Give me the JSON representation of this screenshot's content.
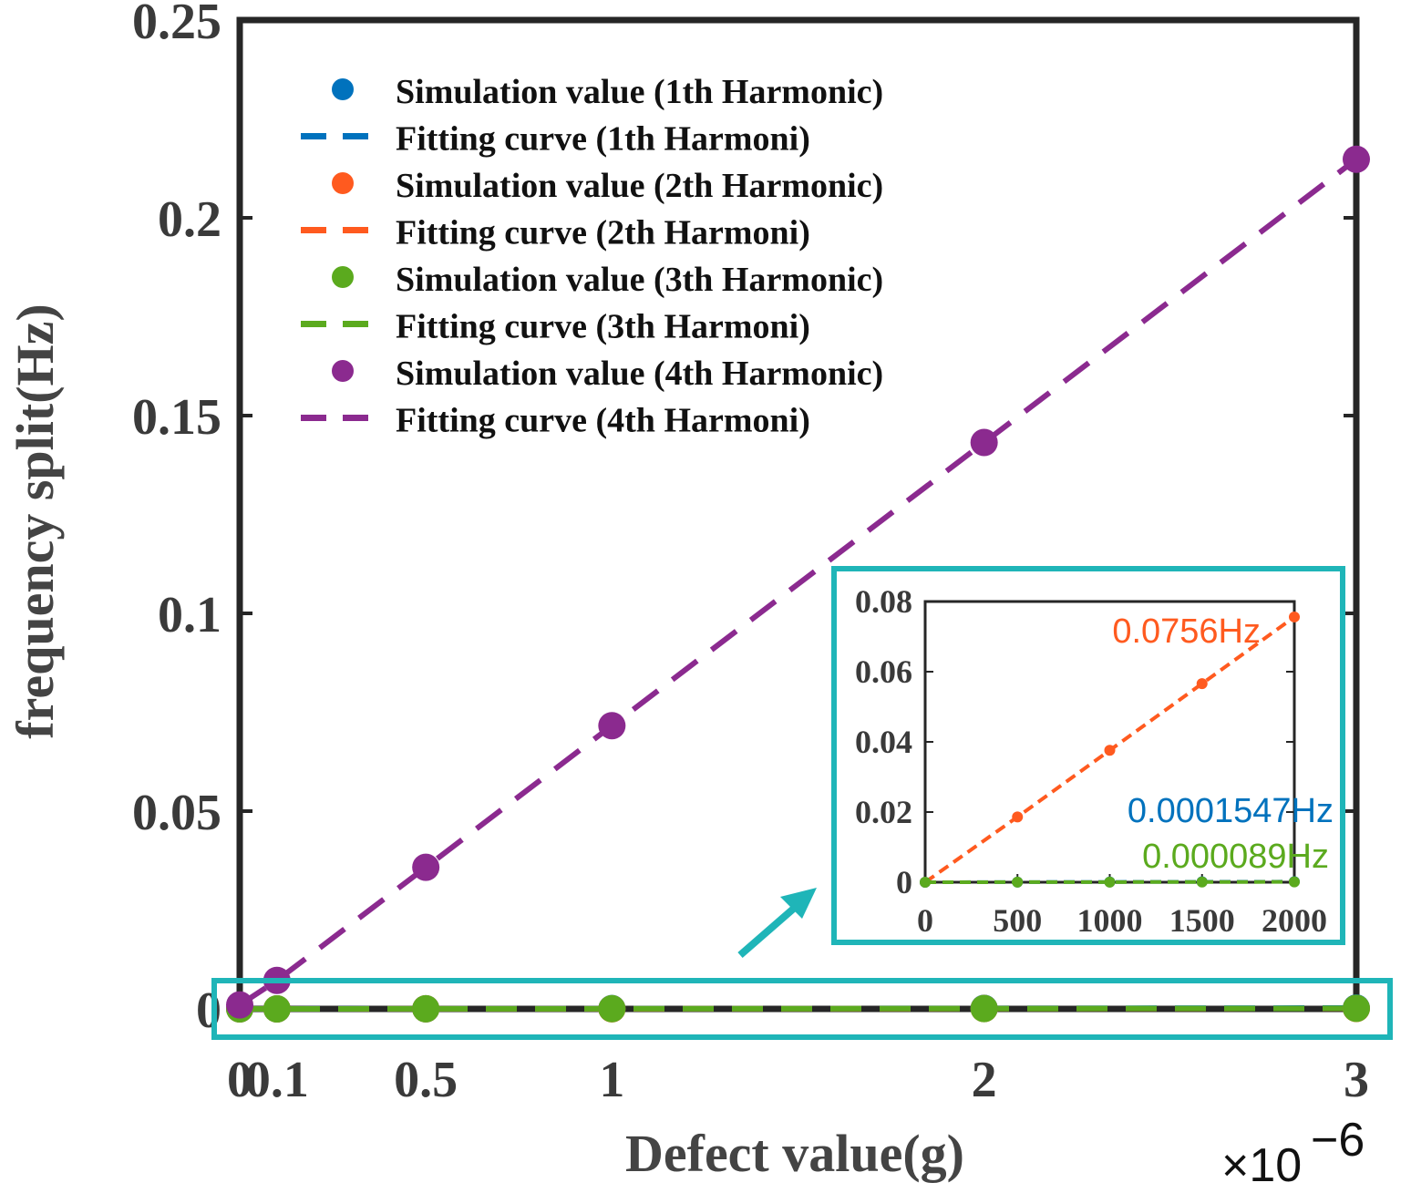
{
  "chart_data": {
    "type": "line",
    "xlabel": "Defect value(g)",
    "ylabel": "frequency split(Hz)",
    "x_multiplier_label": "×10",
    "x_multiplier_exponent": "−6",
    "xlim": [
      0,
      3
    ],
    "ylim": [
      0,
      0.25
    ],
    "x_ticks": [
      0,
      0.1,
      0.5,
      1,
      2,
      3
    ],
    "x_tick_labels": [
      "0",
      "0.1",
      "0.5",
      "1",
      "2",
      "3"
    ],
    "y_ticks": [
      0,
      0.05,
      0.1,
      0.15,
      0.2,
      0.25
    ],
    "y_tick_labels": [
      "0",
      "0.05",
      "0.1",
      "0.15",
      "0.2",
      "0.25"
    ],
    "x": [
      0,
      0.1,
      0.5,
      1,
      2,
      3
    ],
    "series": [
      {
        "name": "1th Harmonic",
        "color": "#0072BD",
        "values": [
          0,
          7.7e-06,
          3.87e-05,
          7.74e-05,
          0.0001547,
          0.000232
        ]
      },
      {
        "name": "2th Harmonic",
        "color": "#FF5A1F",
        "values": [
          0,
          3.8e-06,
          1.9e-05,
          3.78e-05,
          7.56e-05,
          0.000113
        ]
      },
      {
        "name": "3th Harmonic",
        "color": "#5BAA1E",
        "values": [
          0,
          4.5e-06,
          2.23e-05,
          4.45e-05,
          8.9e-05,
          0.000134
        ]
      },
      {
        "name": "4th Harmonic",
        "color": "#8B2A8F",
        "values": [
          0.001,
          0.0072,
          0.0358,
          0.0716,
          0.1432,
          0.2148
        ]
      }
    ],
    "legend": {
      "position": "top-left",
      "entries": [
        {
          "label": "Simulation value (1th Harmonic)",
          "style": "marker",
          "color": "#0072BD"
        },
        {
          "label": "Fitting curve (1th Harmoni)",
          "style": "dashed",
          "color": "#0072BD"
        },
        {
          "label": "Simulation value (2th Harmonic)",
          "style": "marker",
          "color": "#FF5A1F"
        },
        {
          "label": "Fitting curve (2th Harmoni)",
          "style": "dashed",
          "color": "#FF5A1F"
        },
        {
          "label": "Simulation value (3th Harmonic)",
          "style": "marker",
          "color": "#5BAA1E"
        },
        {
          "label": "Fitting curve (3th Harmoni)",
          "style": "dashed",
          "color": "#5BAA1E"
        },
        {
          "label": "Simulation value (4th Harmonic)",
          "style": "marker",
          "color": "#8B2A8F"
        },
        {
          "label": "Fitting curve (4th Harmoni)",
          "style": "dashed",
          "color": "#8B2A8F"
        }
      ]
    },
    "inset": {
      "xlim": [
        0,
        2000
      ],
      "ylim": [
        0,
        0.08
      ],
      "x_ticks": [
        0,
        500,
        1000,
        1500,
        2000
      ],
      "x_tick_labels": [
        "0",
        "500",
        "1000",
        "1500",
        "2000"
      ],
      "y_ticks": [
        0,
        0.02,
        0.04,
        0.06,
        0.08
      ],
      "y_tick_labels": [
        "0",
        "0.02",
        "0.04",
        "0.06",
        "0.08"
      ],
      "x": [
        0,
        500,
        1000,
        1500,
        2000
      ],
      "series": [
        {
          "name": "2th Harmonic",
          "color": "#FF5A1F",
          "values": [
            0,
            0.0186,
            0.0376,
            0.0566,
            0.0756
          ]
        },
        {
          "name": "1th Harmonic",
          "color": "#0072BD",
          "values": [
            0,
            3.87e-05,
            7.74e-05,
            0.000116,
            0.0001547
          ]
        },
        {
          "name": "3th Harmonic",
          "color": "#5BAA1E",
          "values": [
            0,
            2.23e-05,
            4.45e-05,
            6.68e-05,
            8.9e-05
          ]
        }
      ],
      "annotations": [
        {
          "text": "0.0756Hz",
          "color": "#FF5A1F"
        },
        {
          "text": "0.0001547Hz",
          "color": "#0072BD"
        },
        {
          "text": "0.000089Hz",
          "color": "#5BAA1E"
        }
      ],
      "highlight_color": "#1FB5B8"
    }
  }
}
